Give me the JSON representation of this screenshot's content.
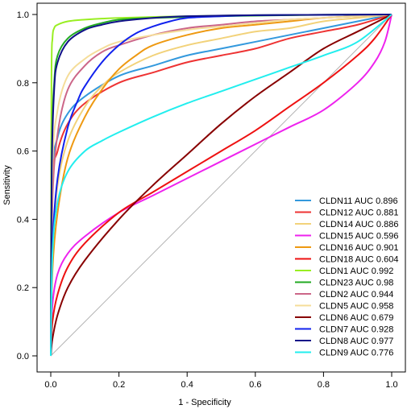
{
  "chart_data": {
    "type": "line",
    "title": "",
    "xlabel": "1 - Specificity",
    "ylabel": "Sensitivity",
    "xlim": [
      0,
      1
    ],
    "ylim": [
      0,
      1
    ],
    "x_ticks": [
      "0.0",
      "0.2",
      "0.4",
      "0.6",
      "0.8",
      "1.0"
    ],
    "y_ticks": [
      "0.0",
      "0.2",
      "0.4",
      "0.6",
      "0.8",
      "1.0"
    ],
    "grid": false,
    "legend_position": "bottom-right",
    "reference_line": {
      "x": [
        0,
        1
      ],
      "y": [
        0,
        1
      ],
      "color": "#b3b3b3"
    },
    "series": [
      {
        "name": "CLDN11 AUC 0.896",
        "color": "#3399dd",
        "x": [
          0,
          0.005,
          0.02,
          0.05,
          0.1,
          0.2,
          0.3,
          0.4,
          0.5,
          0.6,
          0.7,
          0.8,
          0.9,
          1.0
        ],
        "y": [
          0,
          0.52,
          0.64,
          0.71,
          0.76,
          0.82,
          0.85,
          0.88,
          0.9,
          0.92,
          0.94,
          0.96,
          0.98,
          1.0
        ]
      },
      {
        "name": "CLDN12 AUC 0.881",
        "color": "#ee3333",
        "x": [
          0,
          0.005,
          0.02,
          0.05,
          0.1,
          0.2,
          0.3,
          0.4,
          0.5,
          0.6,
          0.7,
          0.8,
          0.9,
          1.0
        ],
        "y": [
          0,
          0.5,
          0.6,
          0.68,
          0.74,
          0.8,
          0.83,
          0.86,
          0.88,
          0.9,
          0.93,
          0.95,
          0.97,
          1.0
        ]
      },
      {
        "name": "CLDN14 AUC 0.886",
        "color": "#f2d27a",
        "x": [
          0,
          0.005,
          0.02,
          0.05,
          0.1,
          0.15,
          0.2,
          0.3,
          0.4,
          0.5,
          0.6,
          0.7,
          0.8,
          0.9,
          1.0
        ],
        "y": [
          0,
          0.3,
          0.5,
          0.63,
          0.73,
          0.79,
          0.83,
          0.88,
          0.91,
          0.93,
          0.95,
          0.96,
          0.98,
          0.99,
          1.0
        ]
      },
      {
        "name": "CLDN15 AUC 0.596",
        "color": "#ee22ee",
        "x": [
          0,
          0.005,
          0.02,
          0.05,
          0.1,
          0.2,
          0.3,
          0.4,
          0.5,
          0.6,
          0.7,
          0.8,
          0.9,
          0.95,
          0.98,
          1.0
        ],
        "y": [
          0,
          0.15,
          0.24,
          0.3,
          0.35,
          0.42,
          0.47,
          0.52,
          0.57,
          0.62,
          0.67,
          0.72,
          0.8,
          0.86,
          0.92,
          1.0
        ]
      },
      {
        "name": "CLDN16 AUC 0.901",
        "color": "#ee9911",
        "x": [
          0,
          0.005,
          0.02,
          0.05,
          0.1,
          0.15,
          0.2,
          0.25,
          0.3,
          0.4,
          0.5,
          0.6,
          0.7,
          0.8,
          0.9,
          1.0
        ],
        "y": [
          0,
          0.25,
          0.42,
          0.58,
          0.7,
          0.78,
          0.84,
          0.88,
          0.91,
          0.94,
          0.96,
          0.97,
          0.98,
          0.99,
          0.995,
          1.0
        ]
      },
      {
        "name": "CLDN18 AUC 0.604",
        "color": "#ee1111",
        "x": [
          0,
          0.005,
          0.02,
          0.05,
          0.1,
          0.2,
          0.3,
          0.4,
          0.5,
          0.6,
          0.7,
          0.8,
          0.9,
          0.95,
          1.0
        ],
        "y": [
          0,
          0.1,
          0.18,
          0.26,
          0.33,
          0.42,
          0.48,
          0.54,
          0.6,
          0.66,
          0.73,
          0.8,
          0.88,
          0.93,
          1.0
        ]
      },
      {
        "name": "CLDN1 AUC 0.992",
        "color": "#99ee22",
        "x": [
          0,
          0.002,
          0.005,
          0.01,
          0.02,
          0.05,
          0.1,
          0.2,
          0.4,
          0.6,
          0.8,
          1.0
        ],
        "y": [
          0,
          0.8,
          0.93,
          0.96,
          0.97,
          0.98,
          0.985,
          0.99,
          0.995,
          0.998,
          0.999,
          1.0
        ]
      },
      {
        "name": "CLDN23 AUC 0.98",
        "color": "#22aa22",
        "x": [
          0,
          0.003,
          0.01,
          0.02,
          0.05,
          0.1,
          0.15,
          0.2,
          0.3,
          0.5,
          0.7,
          1.0
        ],
        "y": [
          0,
          0.6,
          0.8,
          0.88,
          0.93,
          0.96,
          0.975,
          0.985,
          0.99,
          0.995,
          0.998,
          1.0
        ]
      },
      {
        "name": "CLDN2 AUC 0.944",
        "color": "#cc6688",
        "x": [
          0,
          0.005,
          0.02,
          0.05,
          0.1,
          0.15,
          0.2,
          0.3,
          0.4,
          0.5,
          0.6,
          0.7,
          0.8,
          0.9,
          1.0
        ],
        "y": [
          0,
          0.45,
          0.65,
          0.78,
          0.85,
          0.89,
          0.91,
          0.94,
          0.96,
          0.97,
          0.98,
          0.985,
          0.99,
          0.995,
          1.0
        ]
      },
      {
        "name": "CLDN5 AUC 0.958",
        "color": "#f5dd99",
        "x": [
          0,
          0.005,
          0.02,
          0.05,
          0.1,
          0.15,
          0.2,
          0.3,
          0.4,
          0.5,
          0.6,
          0.7,
          0.8,
          0.9,
          1.0
        ],
        "y": [
          0,
          0.55,
          0.72,
          0.82,
          0.87,
          0.9,
          0.92,
          0.94,
          0.955,
          0.965,
          0.975,
          0.985,
          0.99,
          0.995,
          1.0
        ]
      },
      {
        "name": "CLDN6 AUC 0.679",
        "color": "#880000",
        "x": [
          0,
          0.005,
          0.02,
          0.05,
          0.1,
          0.2,
          0.3,
          0.4,
          0.5,
          0.6,
          0.7,
          0.8,
          0.9,
          1.0
        ],
        "y": [
          0,
          0.05,
          0.12,
          0.2,
          0.28,
          0.4,
          0.5,
          0.59,
          0.68,
          0.76,
          0.83,
          0.9,
          0.95,
          1.0
        ]
      },
      {
        "name": "CLDN7 AUC 0.928",
        "color": "#1122ee",
        "x": [
          0,
          0.005,
          0.02,
          0.05,
          0.08,
          0.1,
          0.15,
          0.2,
          0.25,
          0.3,
          0.35,
          0.4,
          0.5,
          0.6,
          0.8,
          1.0
        ],
        "y": [
          0,
          0.32,
          0.52,
          0.67,
          0.75,
          0.79,
          0.86,
          0.91,
          0.945,
          0.965,
          0.98,
          0.99,
          0.995,
          0.998,
          0.999,
          1.0
        ]
      },
      {
        "name": "CLDN8 AUC 0.977",
        "color": "#111188",
        "x": [
          0,
          0.003,
          0.01,
          0.02,
          0.05,
          0.1,
          0.15,
          0.2,
          0.3,
          0.4,
          0.6,
          0.8,
          1.0
        ],
        "y": [
          0,
          0.55,
          0.78,
          0.86,
          0.92,
          0.955,
          0.97,
          0.98,
          0.99,
          0.995,
          0.998,
          0.999,
          1.0
        ]
      },
      {
        "name": "CLDN9 AUC 0.776",
        "color": "#22eeee",
        "x": [
          0,
          0.005,
          0.02,
          0.05,
          0.1,
          0.15,
          0.2,
          0.3,
          0.4,
          0.5,
          0.6,
          0.7,
          0.8,
          0.9,
          1.0
        ],
        "y": [
          0,
          0.3,
          0.45,
          0.54,
          0.6,
          0.63,
          0.655,
          0.7,
          0.74,
          0.775,
          0.81,
          0.845,
          0.88,
          0.92,
          1.0
        ]
      }
    ]
  }
}
